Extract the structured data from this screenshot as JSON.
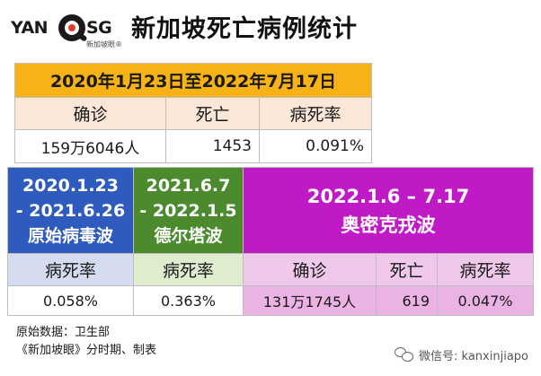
{
  "logo": {
    "left_text": "YAN",
    "right_text": "SG",
    "subtitle": "新加坡眼®",
    "accent_color": "#e63c2f"
  },
  "page_title": "新加坡死亡病例统计",
  "overall": {
    "period": "2020年1月23日至2022年7月17日",
    "banner_color": "#f7b215",
    "headers": [
      "确诊",
      "死亡",
      "病死率"
    ],
    "values": [
      "159万6046人",
      "1453",
      "0.091%"
    ]
  },
  "waves": [
    {
      "date_start": "2020.1.23",
      "date_end": "- 2021.6.26",
      "name": "原始病毒波",
      "header": "病死率",
      "value": "0.058%",
      "color": "#2e5bbd"
    },
    {
      "date_start": "2021.6.7",
      "date_end": "- 2022.1.5",
      "name": "德尔塔波",
      "header": "病死率",
      "value": "0.363%",
      "color": "#4b8a2d"
    },
    {
      "dates": "2022.1.6 – 7.17",
      "name": "奥密克戎波",
      "headers": [
        "确诊",
        "死亡",
        "病死率"
      ],
      "values": [
        "131万1745人",
        "619",
        "0.047%"
      ],
      "color": "#c019c6"
    }
  ],
  "footer": {
    "source": "原始数据：卫生部",
    "credit": "《新加坡眼》分时期、制表",
    "wechat": "微信号: kanxinjiapo"
  }
}
